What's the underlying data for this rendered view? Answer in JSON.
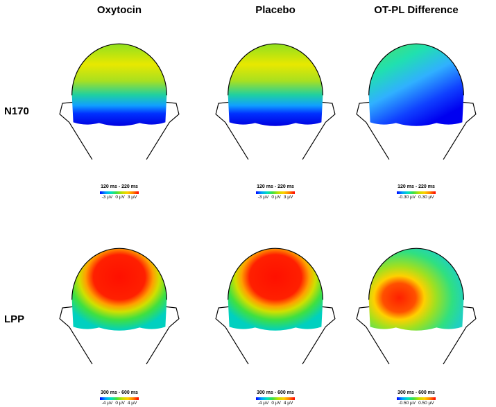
{
  "columns": [
    "Oxytocin",
    "Placebo",
    "OT-PL Difference"
  ],
  "rows": [
    "N170",
    "LPP"
  ],
  "panels": [
    {
      "id": "n170-oxytocin",
      "time": "120 ms - 220 ms",
      "ticks": [
        "-3 µV",
        "0 µV",
        "3 µV"
      ]
    },
    {
      "id": "n170-placebo",
      "time": "120 ms - 220 ms",
      "ticks": [
        "-3 µV",
        "0 µV",
        "3 µV"
      ]
    },
    {
      "id": "n170-difference",
      "time": "120 ms - 220 ms",
      "ticks": [
        "-0.30 µV",
        "0.30 µV"
      ]
    },
    {
      "id": "lpp-oxytocin",
      "time": "300 ms - 600 ms",
      "ticks": [
        "-4 µV",
        "0 µV",
        "4 µV"
      ]
    },
    {
      "id": "lpp-placebo",
      "time": "300 ms - 600 ms",
      "ticks": [
        "-4 µV",
        "0 µV",
        "4 µV"
      ]
    },
    {
      "id": "lpp-difference",
      "time": "300 ms - 600 ms",
      "ticks": [
        "-0.50 µV",
        "0.50 µV"
      ]
    }
  ],
  "colormap": [
    "#0000ff",
    "#00a0ff",
    "#00e0c0",
    "#40e040",
    "#c0e000",
    "#ffd000",
    "#ff8000",
    "#ff0000"
  ]
}
